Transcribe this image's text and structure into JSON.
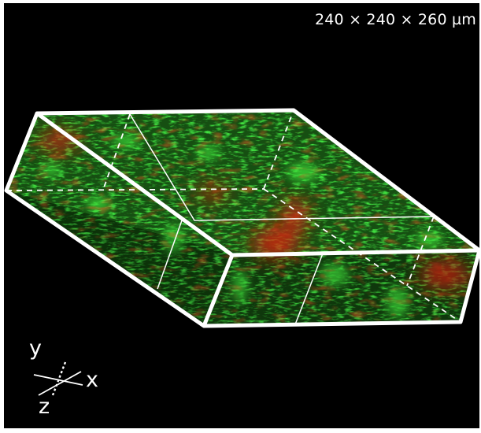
{
  "image": {
    "dimensions_label": "240 × 240 × 260 µm",
    "axes": {
      "y": "y",
      "x": "x",
      "z": "z"
    },
    "colors": {
      "background": "#000000",
      "frame": "#ffffff",
      "green_channel": "#1fbf1f",
      "red_channel": "#c81e0a"
    }
  }
}
